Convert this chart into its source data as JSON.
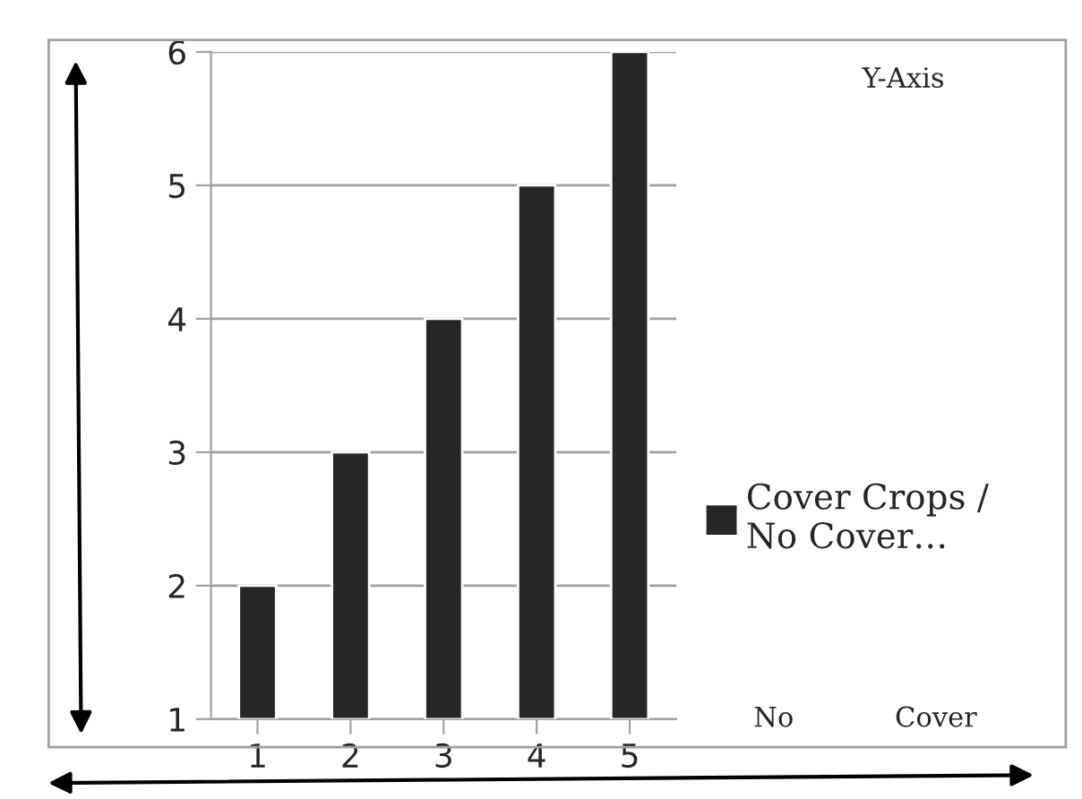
{
  "chart_data": {
    "type": "bar",
    "categories": [
      "1",
      "2",
      "3",
      "4",
      "5"
    ],
    "series": [
      {
        "name": "Cover Crops /\nNo Cover…",
        "color": "#262626",
        "values": [
          2,
          3,
          4,
          5,
          6
        ]
      }
    ],
    "ylim": [
      1,
      6
    ],
    "yticks": [
      1,
      2,
      3,
      4,
      5,
      6
    ],
    "grid": "y",
    "legend": "right",
    "annotations": [
      "Y-Axis",
      "No",
      "Cover"
    ]
  }
}
